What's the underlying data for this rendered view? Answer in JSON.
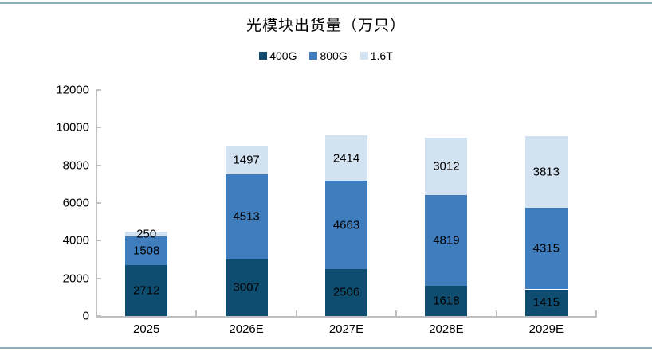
{
  "page": {
    "background": "#FFFFFF",
    "rule_color": "#8EADBC"
  },
  "chart_data": {
    "type": "bar",
    "stacked": true,
    "title": "光模块出货量（万只）",
    "categories": [
      "2025",
      "2026E",
      "2027E",
      "2028E",
      "2029E"
    ],
    "series": [
      {
        "name": "400G",
        "color": "#0E4C70",
        "values": [
          2712,
          3007,
          2506,
          1618,
          1415
        ]
      },
      {
        "name": "800G",
        "color": "#3F7DBC",
        "values": [
          1508,
          4513,
          4663,
          4819,
          4315
        ]
      },
      {
        "name": "1.6T",
        "color": "#D3E2F1",
        "values": [
          250,
          1497,
          2414,
          3012,
          3813
        ]
      }
    ],
    "totals": [
      4470,
      9017,
      9583,
      9449,
      9543
    ],
    "ylim": [
      0,
      12000
    ],
    "ytick_step": 2000,
    "ytick_labels": [
      "0",
      "2000",
      "4000",
      "6000",
      "8000",
      "10000",
      "12000"
    ],
    "legend_position": "top",
    "legend_labels": [
      "400G",
      "800G",
      "1.6T"
    ],
    "grid": false,
    "axis_color": "#BFBFBF",
    "label_color": "#000000",
    "data_labels_shown": true
  }
}
